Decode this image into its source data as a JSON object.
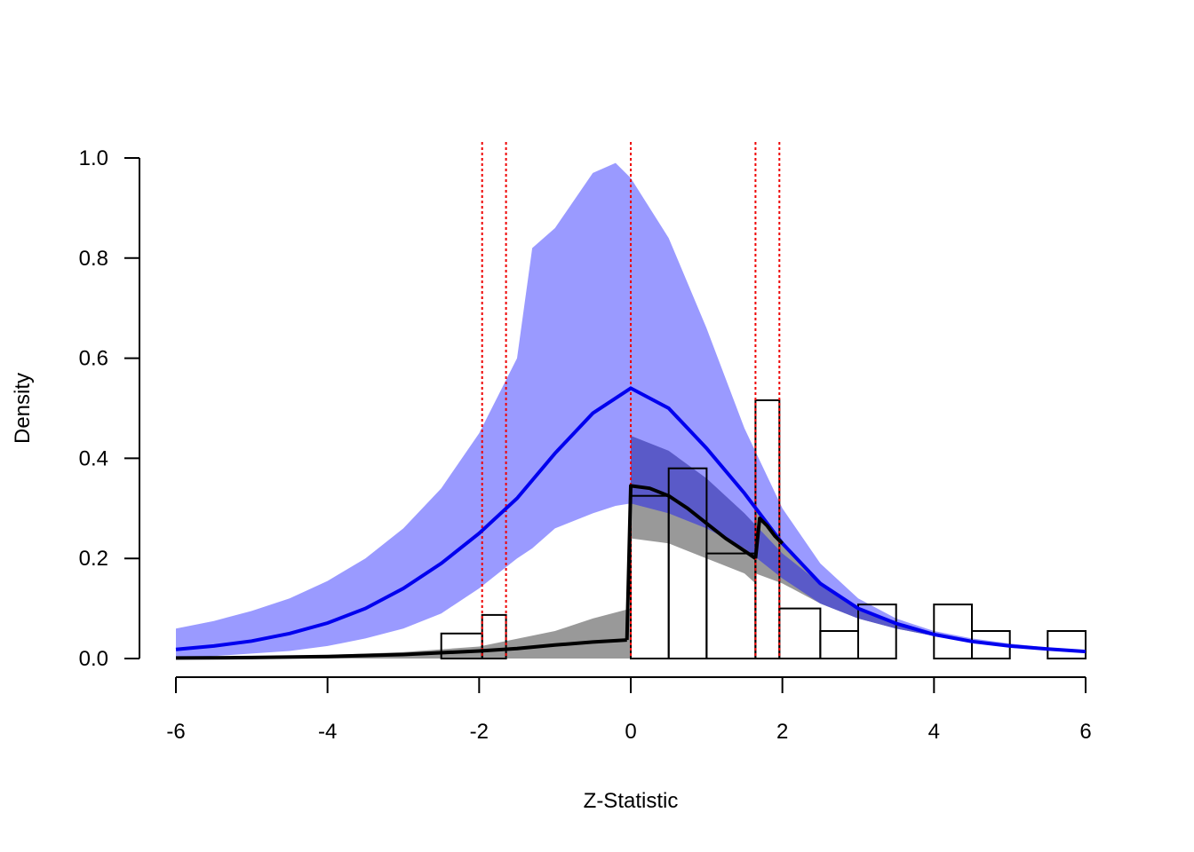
{
  "chart_data": {
    "type": "histogram-with-density",
    "title": "",
    "xlabel": "Z-Statistic",
    "ylabel": "Density",
    "xlim": [
      -6,
      6
    ],
    "ylim": [
      0,
      1.0
    ],
    "x_ticks": [
      -6,
      -4,
      -2,
      0,
      2,
      4,
      6
    ],
    "y_ticks": [
      0.0,
      0.2,
      0.4,
      0.6,
      0.8,
      1.0
    ],
    "x_tick_labels": [
      "-6",
      "-4",
      "-2",
      "0",
      "2",
      "4",
      "6"
    ],
    "y_tick_labels": [
      "0.0",
      "0.2",
      "0.4",
      "0.6",
      "0.8",
      "1.0"
    ],
    "grid": false,
    "colors": {
      "histogram_stroke": "#000000",
      "blue_band": "#9a9aff",
      "dark_blue_band": "#5a5ac8",
      "gray_band": "#999999",
      "blue_line": "#0000ee",
      "black_line": "#000000",
      "reference_line": "#ee0000"
    },
    "histogram": [
      {
        "x0": -2.5,
        "x1": -1.96,
        "density": 0.05
      },
      {
        "x0": -1.96,
        "x1": -1.645,
        "density": 0.087
      },
      {
        "x0": 0.0,
        "x1": 0.5,
        "density": 0.325
      },
      {
        "x0": 0.5,
        "x1": 1.0,
        "density": 0.38
      },
      {
        "x0": 1.0,
        "x1": 1.645,
        "density": 0.21
      },
      {
        "x0": 1.645,
        "x1": 1.96,
        "density": 0.516
      },
      {
        "x0": 1.96,
        "x1": 2.5,
        "density": 0.1
      },
      {
        "x0": 2.5,
        "x1": 3.0,
        "density": 0.055
      },
      {
        "x0": 3.0,
        "x1": 3.5,
        "density": 0.108
      },
      {
        "x0": 4.0,
        "x1": 4.5,
        "density": 0.108
      },
      {
        "x0": 4.5,
        "x1": 5.0,
        "density": 0.055
      },
      {
        "x0": 5.5,
        "x1": 6.0,
        "density": 0.055
      }
    ],
    "reference_lines": [
      -1.96,
      -1.645,
      0.0,
      1.645,
      1.96
    ],
    "blue_line": {
      "x": [
        -6,
        -5.5,
        -5,
        -4.5,
        -4,
        -3.5,
        -3,
        -2.5,
        -2,
        -1.5,
        -1,
        -0.5,
        0,
        0.5,
        1,
        1.5,
        2,
        2.5,
        3,
        3.5,
        4,
        4.5,
        5,
        5.5,
        6
      ],
      "y": [
        0.018,
        0.025,
        0.035,
        0.05,
        0.071,
        0.1,
        0.14,
        0.19,
        0.25,
        0.32,
        0.41,
        0.49,
        0.54,
        0.5,
        0.42,
        0.33,
        0.23,
        0.15,
        0.1,
        0.07,
        0.048,
        0.034,
        0.025,
        0.019,
        0.014
      ]
    },
    "blue_band": {
      "x": [
        -6,
        -5.5,
        -5,
        -4.5,
        -4,
        -3.5,
        -3,
        -2.5,
        -2,
        -1.5,
        -1.3,
        -1,
        -0.5,
        -0.2,
        0,
        0.5,
        1,
        1.5,
        2,
        2.5,
        3,
        3.5,
        4,
        4.5,
        5,
        5.5,
        6
      ],
      "upper": [
        0.06,
        0.075,
        0.095,
        0.12,
        0.155,
        0.2,
        0.26,
        0.34,
        0.45,
        0.6,
        0.82,
        0.86,
        0.97,
        0.99,
        0.96,
        0.84,
        0.66,
        0.46,
        0.3,
        0.19,
        0.12,
        0.08,
        0.055,
        0.04,
        0.03,
        0.022,
        0.016
      ],
      "lower": [
        0.0,
        0.005,
        0.01,
        0.015,
        0.025,
        0.04,
        0.06,
        0.09,
        0.14,
        0.2,
        0.22,
        0.26,
        0.29,
        0.305,
        0.31,
        0.29,
        0.26,
        0.22,
        0.16,
        0.11,
        0.08,
        0.06,
        0.045,
        0.033,
        0.025,
        0.019,
        0.014
      ]
    },
    "dark_blue_band": {
      "x": [
        0.0,
        0.5,
        1.0,
        1.5,
        2.0,
        2.5,
        3.0,
        3.5,
        4.0,
        4.5,
        5.0,
        5.5,
        6.0
      ],
      "upper": [
        0.445,
        0.415,
        0.36,
        0.29,
        0.21,
        0.15,
        0.1,
        0.07,
        0.05,
        0.035,
        0.025,
        0.019,
        0.014
      ],
      "lower": [
        0.31,
        0.29,
        0.26,
        0.22,
        0.16,
        0.11,
        0.08,
        0.06,
        0.045,
        0.033,
        0.025,
        0.019,
        0.014
      ]
    },
    "gray_band": {
      "x": [
        -6,
        -5,
        -4,
        -3,
        -2,
        -1,
        -0.5,
        0,
        0.0,
        0.5,
        1.0,
        1.5,
        1.645,
        1.645,
        2.0,
        2.5,
        3.0,
        3.5,
        4.0,
        4.5,
        5.0,
        5.5,
        6.0
      ],
      "upper": [
        0.003,
        0.004,
        0.007,
        0.013,
        0.024,
        0.055,
        0.08,
        0.1,
        0.315,
        0.31,
        0.28,
        0.245,
        0.23,
        0.3,
        0.23,
        0.15,
        0.1,
        0.07,
        0.05,
        0.035,
        0.025,
        0.019,
        0.014
      ],
      "lower": [
        0.0,
        0.0,
        0.0,
        0.0,
        0.0,
        0.0,
        0.0,
        0.0,
        0.24,
        0.23,
        0.2,
        0.17,
        0.15,
        0.17,
        0.15,
        0.11,
        0.08,
        0.06,
        0.045,
        0.033,
        0.025,
        0.019,
        0.014
      ]
    },
    "black_line": {
      "segments": [
        {
          "x": [
            -6,
            -5,
            -4,
            -3,
            -2,
            -1.5,
            -1,
            -0.5,
            -0.05
          ],
          "y": [
            0.001,
            0.002,
            0.004,
            0.008,
            0.015,
            0.02,
            0.027,
            0.033,
            0.037
          ]
        },
        {
          "x": [
            -0.05,
            0.0,
            0.25,
            0.5,
            0.75,
            1.0,
            1.25,
            1.5,
            1.645
          ],
          "y": [
            0.037,
            0.345,
            0.34,
            0.325,
            0.3,
            0.27,
            0.24,
            0.215,
            0.2
          ]
        },
        {
          "x": [
            1.645,
            1.7,
            1.8,
            1.9,
            2.0
          ],
          "y": [
            0.2,
            0.28,
            0.265,
            0.245,
            0.23
          ]
        }
      ]
    }
  }
}
